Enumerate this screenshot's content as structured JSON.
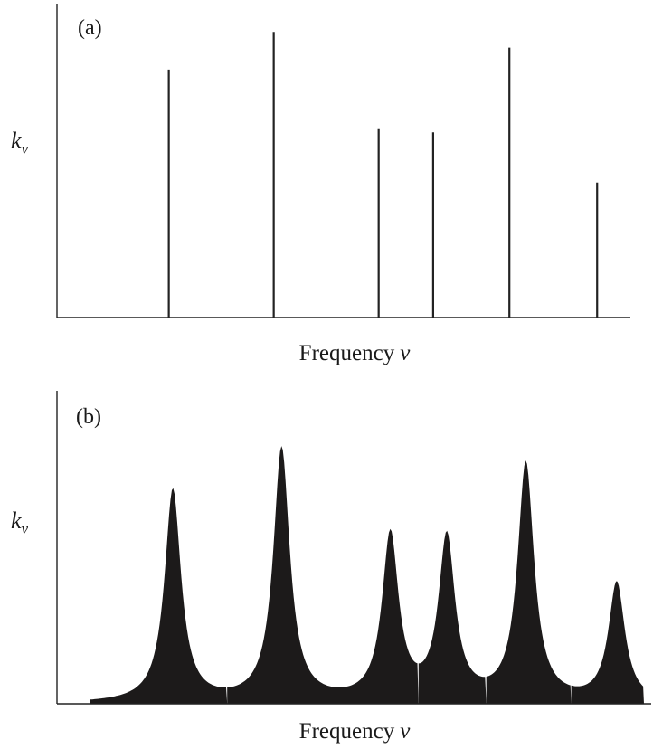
{
  "chart_data": [
    {
      "type": "bar",
      "panel_label": "(a)",
      "xlabel": "Frequency",
      "xlabel_symbol": "ν",
      "ylabel_symbol": "k",
      "ylabel_subscript": "ν",
      "ylim": [
        0,
        100
      ],
      "xlim": [
        0,
        100
      ],
      "grid": false,
      "series": [
        {
          "x": [
            19.5,
            37.8,
            56.1,
            65.6,
            78.9,
            94.2
          ],
          "values": [
            79,
            91,
            60,
            59,
            86,
            43
          ]
        }
      ]
    },
    {
      "type": "area",
      "panel_label": "(b)",
      "xlabel": "Frequency",
      "xlabel_symbol": "ν",
      "ylabel_symbol": "k",
      "ylabel_subscript": "ν",
      "ylim": [
        0,
        100
      ],
      "xlim": [
        0,
        100
      ],
      "grid": false,
      "series": [
        {
          "x": [
            19.5,
            37.8,
            56.1,
            65.6,
            78.9,
            94.2
          ],
          "values": [
            68,
            81,
            53,
            52,
            76,
            38
          ]
        }
      ]
    }
  ]
}
